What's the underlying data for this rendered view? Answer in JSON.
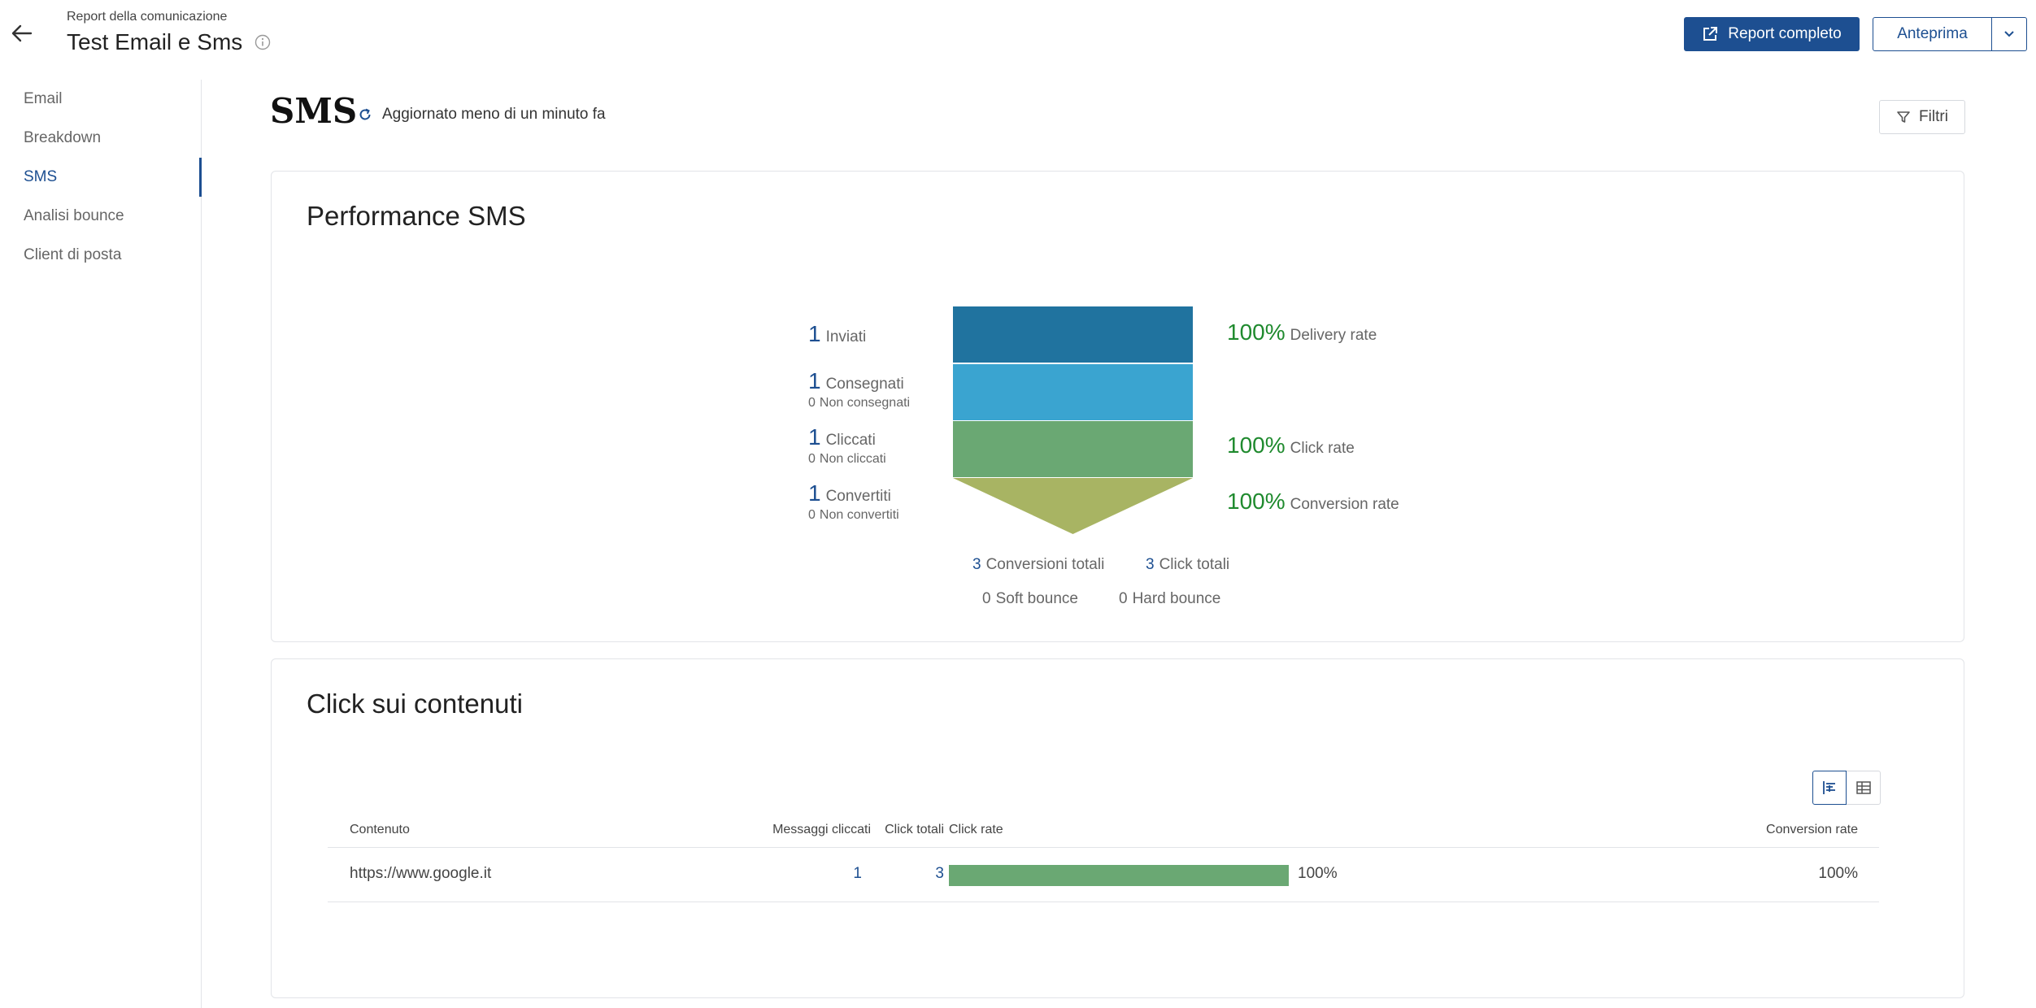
{
  "header": {
    "subtitle": "Report della comunicazione",
    "title": "Test Email e Sms",
    "report_button": "Report completo",
    "preview_button": "Anteprima"
  },
  "sidebar": {
    "items": [
      {
        "label": "Email"
      },
      {
        "label": "Breakdown"
      },
      {
        "label": "SMS"
      },
      {
        "label": "Analisi bounce"
      },
      {
        "label": "Client di posta"
      }
    ],
    "active_index": 2
  },
  "main": {
    "heading": "SMS",
    "updated_text": "Aggiornato meno di un minuto fa",
    "filter_button": "Filtri"
  },
  "performance": {
    "title": "Performance SMS",
    "stages": [
      {
        "value": "1",
        "label": "Inviati",
        "color": "#20739f"
      },
      {
        "value": "1",
        "label": "Consegnati",
        "sub_value": "0",
        "sub_label": "Non consegnati",
        "color": "#3aa4d0"
      },
      {
        "value": "1",
        "label": "Cliccati",
        "sub_value": "0",
        "sub_label": "Non cliccati",
        "color": "#6aa873"
      },
      {
        "value": "1",
        "label": "Convertiti",
        "sub_value": "0",
        "sub_label": "Non convertiti",
        "color": "#a8b463"
      }
    ],
    "rates": [
      {
        "value": "100%",
        "label": "Delivery rate"
      },
      {
        "value": "100%",
        "label": "Click rate"
      },
      {
        "value": "100%",
        "label": "Conversion rate"
      }
    ],
    "totals": {
      "conversions_value": "3",
      "conversions_label": "Conversioni totali",
      "clicks_value": "3",
      "clicks_label": "Click totali",
      "soft_value": "0",
      "soft_label": "Soft bounce",
      "hard_value": "0",
      "hard_label": "Hard bounce"
    }
  },
  "content_clicks": {
    "title": "Click sui contenuti",
    "columns": {
      "content": "Contenuto",
      "messages_clicked": "Messaggi cliccati",
      "total_clicks": "Click totali",
      "click_rate": "Click rate",
      "conversion_rate": "Conversion rate"
    },
    "rows": [
      {
        "content": "https://www.google.it",
        "messages_clicked": "1",
        "total_clicks": "3",
        "click_rate": "100%",
        "click_rate_fraction": 1.0,
        "conversion_rate": "100%"
      }
    ]
  }
}
